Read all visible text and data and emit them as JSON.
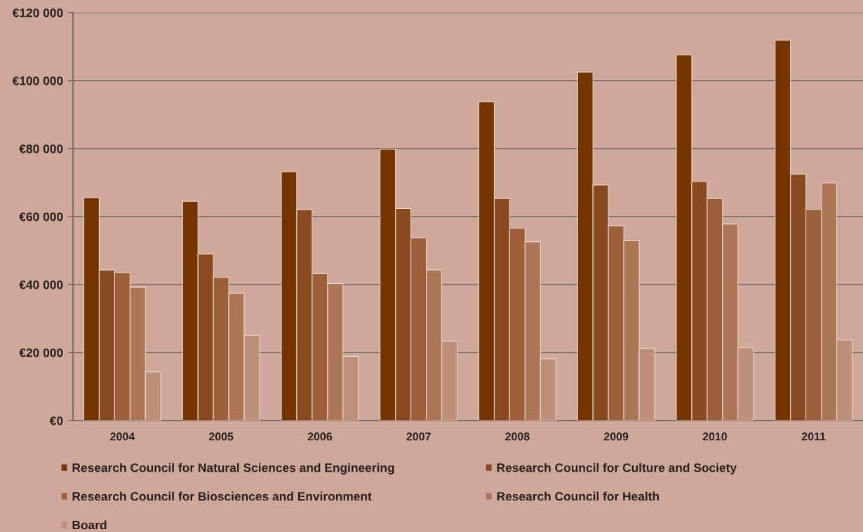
{
  "chart_data": {
    "type": "bar",
    "categories": [
      "2004",
      "2005",
      "2006",
      "2007",
      "2008",
      "2009",
      "2010",
      "2011"
    ],
    "series": [
      {
        "name": "Research Council for Natural Sciences and Engineering",
        "color": "#743500",
        "values": [
          65600,
          64500,
          73200,
          79800,
          93800,
          102500,
          107600,
          111900
        ]
      },
      {
        "name": "Research Council for Culture and Society",
        "color": "#8a4a1f",
        "values": [
          44300,
          49000,
          62000,
          62400,
          65300,
          69300,
          70300,
          72500
        ]
      },
      {
        "name": "Research Council for Biosciences and Environment",
        "color": "#9c5f3a",
        "values": [
          43500,
          42100,
          43200,
          53700,
          56600,
          57300,
          65300,
          62100
        ]
      },
      {
        "name": "Research Council for Health",
        "color": "#ad7656",
        "values": [
          39200,
          37500,
          40300,
          44300,
          52600,
          52900,
          57800,
          69900
        ]
      },
      {
        "name": "Board",
        "color": "#bf9079",
        "values": [
          14300,
          25100,
          18900,
          23300,
          18200,
          21200,
          21500,
          23700
        ]
      }
    ],
    "ylim": [
      0,
      120000
    ],
    "yticks": [
      {
        "value": 0,
        "label": "€0"
      },
      {
        "value": 20000,
        "label": "€20 000"
      },
      {
        "value": 40000,
        "label": "€40 000"
      },
      {
        "value": 60000,
        "label": "€60 000"
      },
      {
        "value": 80000,
        "label": "€80 000"
      },
      {
        "value": 100000,
        "label": "€100 000"
      },
      {
        "value": 120000,
        "label": "€120 000"
      }
    ],
    "grid": "y",
    "legend": "bottom"
  }
}
